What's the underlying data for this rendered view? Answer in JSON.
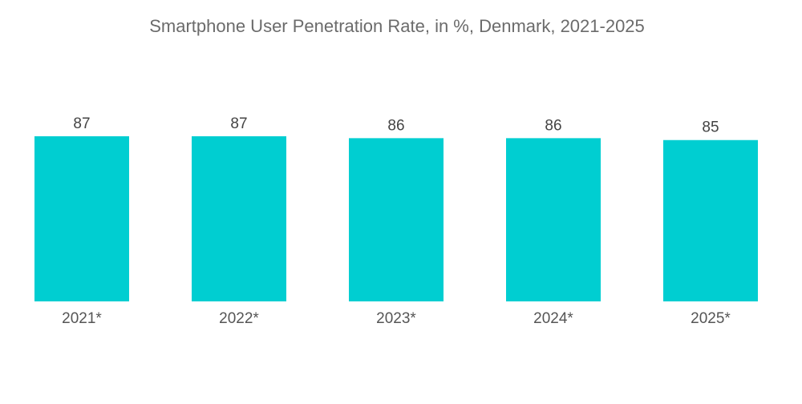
{
  "chart_data": {
    "type": "bar",
    "title": "Smartphone User Penetration Rate, in %, Denmark, 2021-2025",
    "categories": [
      "2021*",
      "2022*",
      "2023*",
      "2024*",
      "2025*"
    ],
    "values": [
      87,
      87,
      86,
      86,
      85
    ],
    "xlabel": "",
    "ylabel": "",
    "ylim": [
      0,
      87
    ],
    "grid": false,
    "legend": "none",
    "bar_color": "#00CED1"
  }
}
